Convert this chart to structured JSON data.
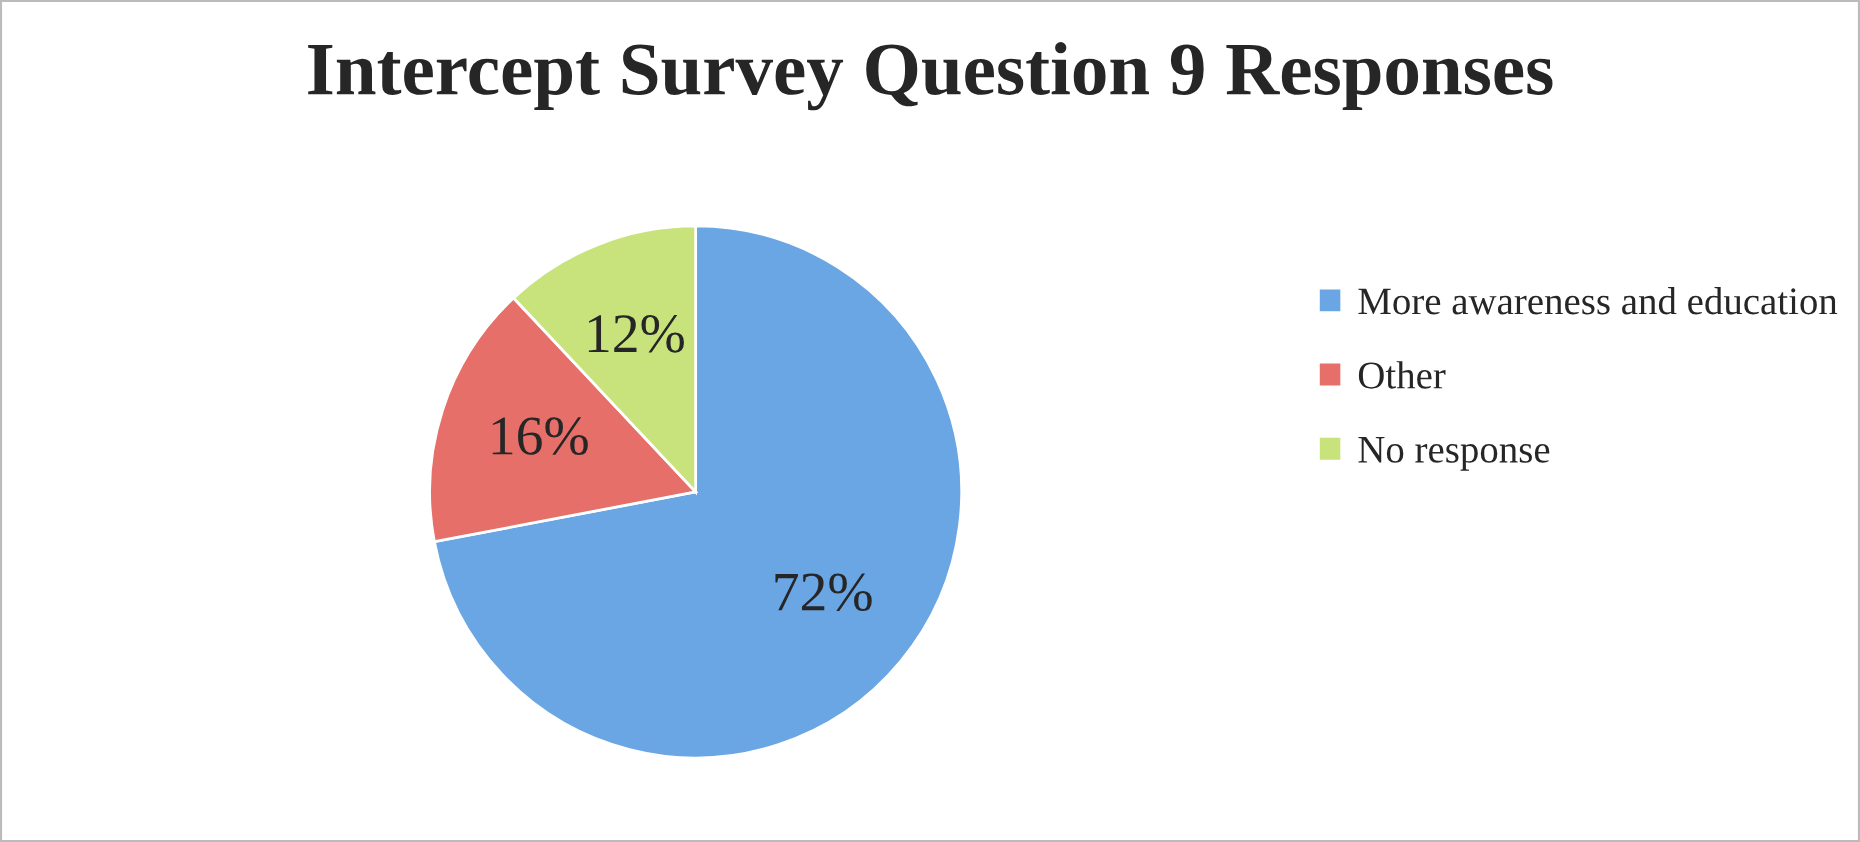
{
  "chart_data": {
    "type": "pie",
    "title": "Intercept Survey Question 9 Responses",
    "categories": [
      "More awareness and education",
      "Other",
      "No response"
    ],
    "values": [
      72,
      16,
      12
    ],
    "value_labels": [
      "72%",
      "16%",
      "12%"
    ],
    "colors": [
      "#6aa5e4",
      "#e66f69",
      "#c9e37c"
    ],
    "legend": "right"
  }
}
